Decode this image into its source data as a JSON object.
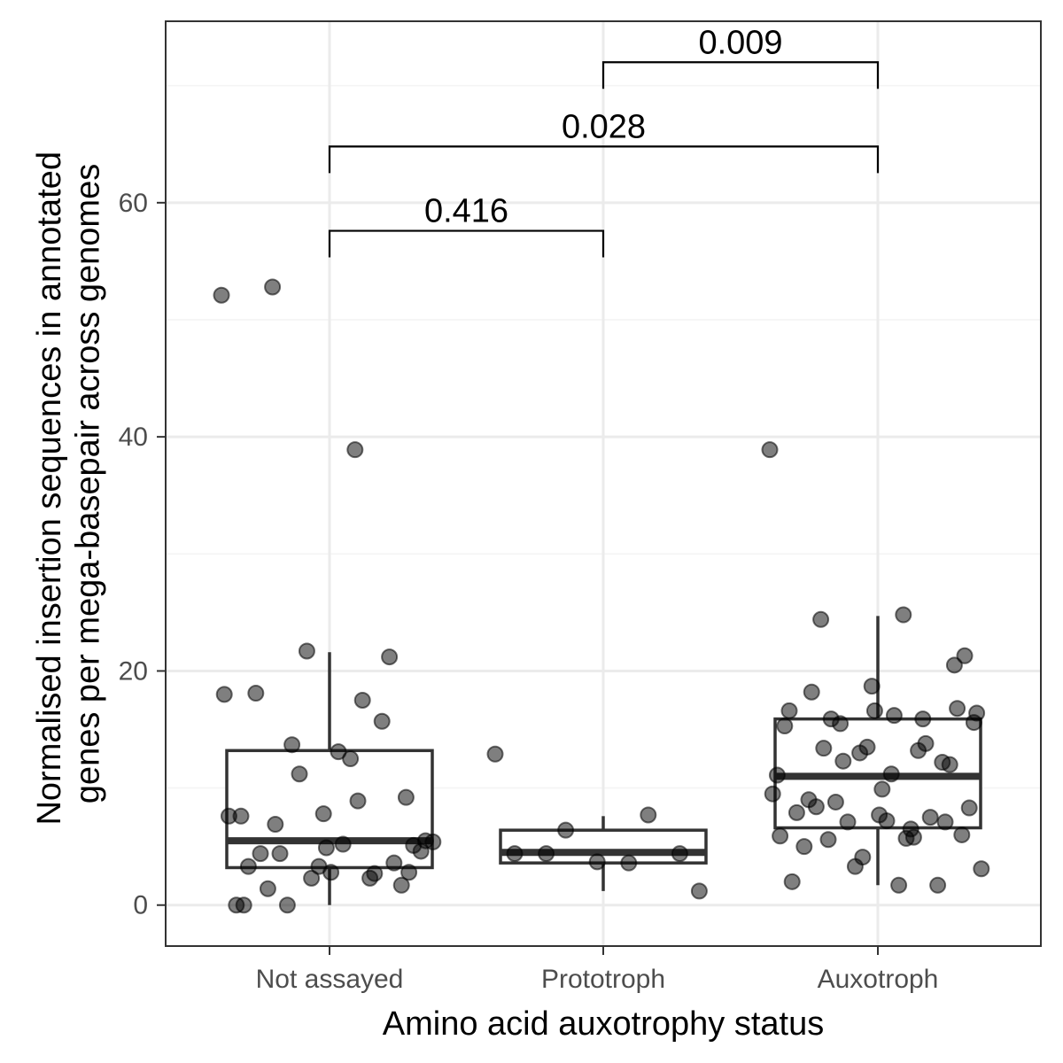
{
  "chart_data": {
    "type": "box",
    "xlabel": "Amino acid auxotrophy status",
    "ylabel_lines": [
      "Normalised insertion sequences in annotated",
      "genes per mega-basepair across genomes"
    ],
    "categories": [
      "Not assayed",
      "Prototroph",
      "Auxotroph"
    ],
    "ylim": [
      -3.5,
      75.5
    ],
    "yticks": [
      0,
      20,
      40,
      60
    ],
    "grid": true,
    "boxes": [
      {
        "category": "Not assayed",
        "min": 0,
        "q1": 3.2,
        "median": 5.5,
        "q3": 13.2,
        "max": 21.6
      },
      {
        "category": "Prototroph",
        "min": 1.2,
        "q1": 3.6,
        "median": 4.5,
        "q3": 6.4,
        "max": 7.6
      },
      {
        "category": "Auxotroph",
        "min": 1.7,
        "q1": 6.6,
        "median": 11.0,
        "q3": 15.9,
        "max": 24.7
      }
    ],
    "points": [
      {
        "category": "Not assayed",
        "values": [
          52.1,
          38.9,
          52.8,
          9.2,
          7.8,
          7.6,
          2.7,
          13.7,
          5.5,
          5.2,
          4.4,
          3.6,
          2.3,
          7.6,
          17.5,
          4.4,
          5.1,
          2.8,
          3.3,
          15.7,
          11.2,
          5.4,
          12.5,
          1.4,
          1.7,
          3.3,
          0.0,
          2.3,
          0.0,
          4.6,
          13.1,
          18.1,
          21.2,
          21.7,
          18.0,
          8.9,
          6.9,
          2.8,
          4.9,
          0.0
        ]
      },
      {
        "category": "Prototroph",
        "values": [
          12.9,
          3.6,
          4.4,
          4.4,
          3.7,
          4.4,
          7.7,
          6.4,
          1.2
        ]
      },
      {
        "category": "Auxotroph",
        "values": [
          38.9,
          24.8,
          24.4,
          20.5,
          18.7,
          16.6,
          15.9,
          15.5,
          15.6,
          11.2,
          9.0,
          12.2,
          13.0,
          11.1,
          6.5,
          5.6,
          6.0,
          7.7,
          7.9,
          7.5,
          7.1,
          3.1,
          1.7,
          8.4,
          12.0,
          13.5,
          15.3,
          13.2,
          8.8,
          8.3,
          7.2,
          5.0,
          1.7,
          3.3,
          9.5,
          5.7,
          13.4,
          16.8,
          16.6,
          2.0,
          13.8,
          12.3,
          16.4,
          16.2,
          18.2,
          7.1,
          4.1,
          5.9,
          5.8,
          15.9,
          21.3,
          9.9
        ]
      }
    ],
    "comparisons": [
      {
        "from": "Not assayed",
        "to": "Prototroph",
        "p": "0.416",
        "y": 57.6
      },
      {
        "from": "Not assayed",
        "to": "Auxotroph",
        "p": "0.028",
        "y": 64.8
      },
      {
        "from": "Prototroph",
        "to": "Auxotroph",
        "p": "0.009",
        "y": 72.0
      }
    ],
    "colors": {
      "points": "#000000",
      "box": "#333333",
      "grid_major": "#ebebeb",
      "grid_minor": "#f4f4f4",
      "panel_border": "#333333",
      "tick_text": "#4d4d4d"
    }
  }
}
